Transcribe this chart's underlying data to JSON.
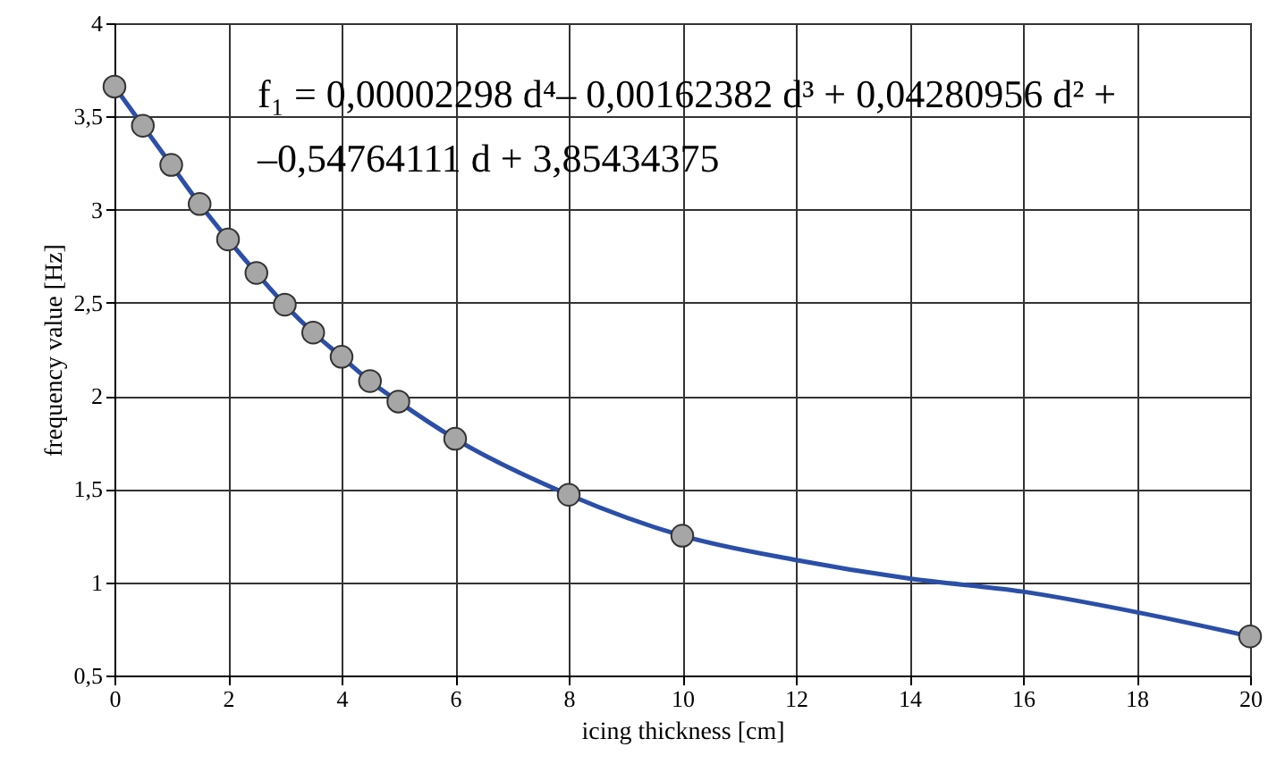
{
  "chart_data": {
    "type": "scatter",
    "xlabel": "icing thickness [cm]",
    "ylabel": "frequency value [Hz]",
    "xlim": [
      0,
      20
    ],
    "xticks": [
      0,
      2,
      4,
      6,
      8,
      10,
      12,
      14,
      16,
      18,
      20
    ],
    "ylim": [
      0.5,
      4
    ],
    "yticks": [
      {
        "value": 0.5,
        "label": "0,5"
      },
      1,
      {
        "value": 1.5,
        "label": "1,5"
      },
      2,
      {
        "value": 2.5,
        "label": "2,5"
      },
      3,
      {
        "value": 3.5,
        "label": "3,5"
      },
      4
    ],
    "grid": true,
    "series": [
      {
        "type": "line",
        "color": "#2b4fa8",
        "line_style": "solid",
        "marker": "none",
        "x": [
          0,
          0.5,
          1,
          1.5,
          2,
          2.5,
          3,
          3.5,
          4,
          4.5,
          5,
          6,
          8,
          10,
          12,
          14,
          16,
          18,
          20
        ],
        "values": [
          3.66,
          3.45,
          3.24,
          3.03,
          2.84,
          2.66,
          2.49,
          2.34,
          2.21,
          2.08,
          1.97,
          1.77,
          1.47,
          1.25,
          1.12,
          1.02,
          0.95,
          0.84,
          0.71
        ]
      },
      {
        "color": "#a6a6a6",
        "marker": "circle",
        "x": [
          0,
          0.5,
          1,
          1.5,
          2,
          2.5,
          3,
          3.5,
          4,
          4.5,
          5,
          6,
          8,
          10,
          20
        ],
        "values": [
          3.66,
          3.45,
          3.24,
          3.03,
          2.84,
          2.66,
          2.49,
          2.34,
          2.21,
          2.08,
          1.97,
          1.77,
          1.47,
          1.25,
          0.71
        ]
      }
    ],
    "annotations": [
      "f₁ = 0,00002298  d⁴– 0,00162382  d³ + 0,04280956  d² +",
      "–0,54764111  d + 3,85434375"
    ]
  }
}
